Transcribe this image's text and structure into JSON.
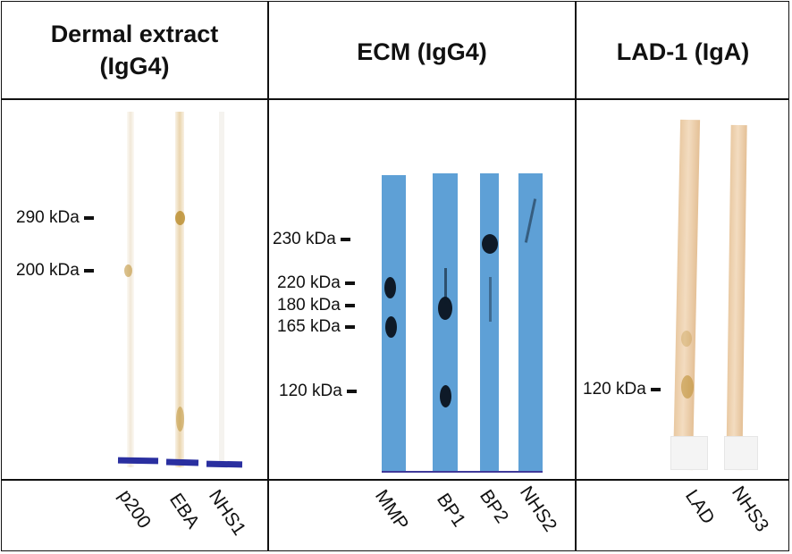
{
  "panels": [
    {
      "id": "dermal",
      "title_line1": "Dermal extract",
      "title_line2": "(IgG4)",
      "markers": [
        "290 kDa",
        "200 kDa"
      ],
      "lanes": [
        "p200",
        "EBA",
        "NHS1"
      ]
    },
    {
      "id": "ecm",
      "title_line1": "ECM (IgG4)",
      "markers": [
        "230 kDa",
        "220 kDa",
        "180 kDa",
        "165 kDa",
        "120 kDa"
      ],
      "lanes": [
        "MMP",
        "BP1",
        "BP2",
        "NHS2"
      ]
    },
    {
      "id": "lad",
      "title_line1": "LAD-1 (IgA)",
      "markers": [
        "120 kDa"
      ],
      "lanes": [
        "LAD",
        "NHS3"
      ]
    }
  ],
  "colors": {
    "membrane_blue": "#5ea0d6",
    "band_dark": "#0e1a28",
    "band_gold": "#b98b2a",
    "strip_beige": "#eed2ae"
  }
}
